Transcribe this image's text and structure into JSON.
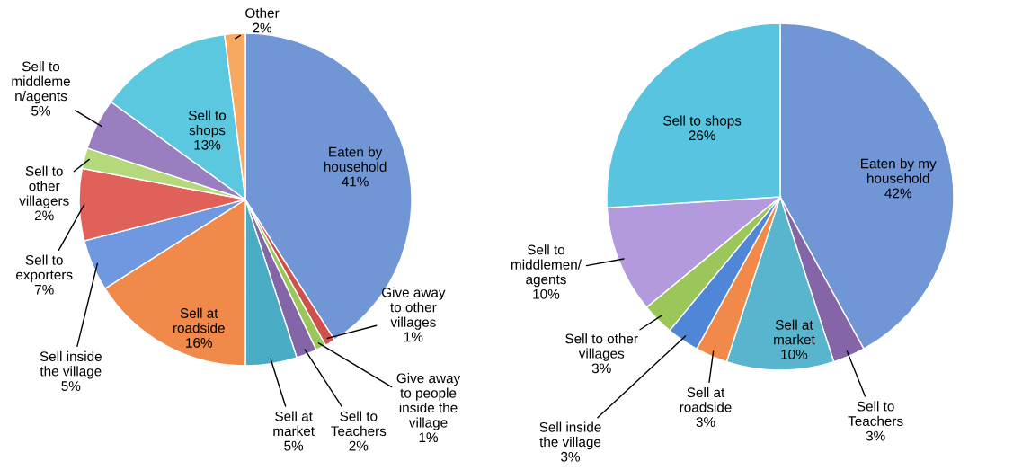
{
  "chart_data": [
    {
      "type": "pie",
      "categories": [
        "Eaten by\nhousehold",
        "Give away\nto other\nvillages",
        "Give away\nto people\ninside the\nvillage",
        "Sell to\nTeachers",
        "Sell at\nmarket",
        "Sell at\nroadside",
        "Sell inside\nthe village",
        "Sell to\nexporters",
        "Sell to\nother\nvillagers",
        "Sell to\nmiddleme\nn/agents",
        "Sell to\nshops",
        "Other"
      ],
      "values": [
        41,
        1,
        1,
        2,
        5,
        16,
        5,
        7,
        2,
        5,
        13,
        2
      ],
      "value_labels": [
        "41%",
        "1%",
        "1%",
        "2%",
        "5%",
        "16%",
        "5%",
        "7%",
        "2%",
        "5%",
        "13%",
        "2%"
      ],
      "colors": [
        "#7196d6",
        "#d0504d",
        "#9bc65a",
        "#8466a8",
        "#4aabc4",
        "#f0894a",
        "#6f98e0",
        "#e0605a",
        "#b5d97a",
        "#9a7fc0",
        "#5cc8e0",
        "#f9a860"
      ]
    },
    {
      "type": "pie",
      "categories": [
        "Eaten by my\nhousehold",
        "Sell to\nTeachers",
        "Sell at\nmarket",
        "Sell at\nroadside",
        "Sell inside\nthe village",
        "Sell to other\nvillages",
        "Sell to\nmiddlemen/\nagents",
        "Sell to shops"
      ],
      "values": [
        42,
        3,
        10,
        3,
        3,
        3,
        10,
        26
      ],
      "value_labels": [
        "42%",
        "3%",
        "10%",
        "3%",
        "3%",
        "3%",
        "10%",
        "26%"
      ],
      "colors": [
        "#7196d6",
        "#8466a8",
        "#59b4ce",
        "#f0894a",
        "#4f86d8",
        "#9bc65a",
        "#b39adc",
        "#58c4e0"
      ]
    }
  ]
}
